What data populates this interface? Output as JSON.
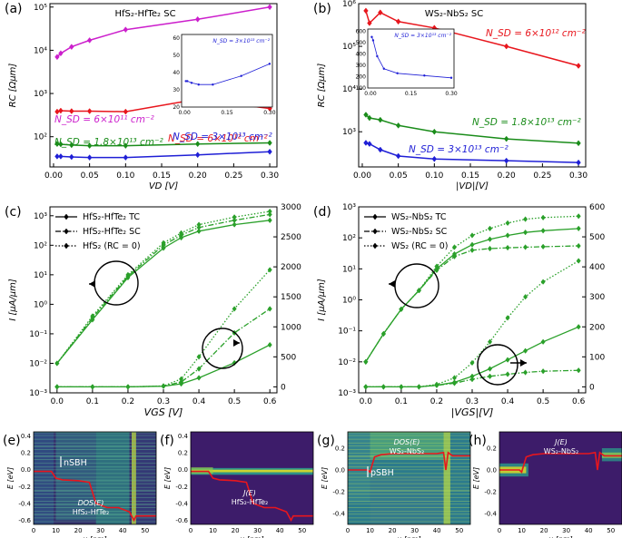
{
  "colors": {
    "red": "#e8161d",
    "green": "#1a8c1a",
    "blue": "#1f1fd6",
    "magenta": "#cc1fcc",
    "mid": "#2aa02a",
    "heat_bg": "#3b1f6b",
    "heat_hi": "#f2e41c",
    "heat_mid": "#33a58d"
  },
  "chart_data": [
    {
      "panel": "(a)",
      "type": "line",
      "title": "HfS₂-HfTe₂ SC",
      "xlabel": "V_D [V]",
      "ylabel": "R_C [Ωμm]",
      "yscale": "log",
      "xlim": [
        -0.005,
        0.31
      ],
      "ylim": [
        20,
        120000
      ],
      "xticks": [
        "0.00",
        "0.05",
        "0.10",
        "0.15",
        "0.20",
        "0.25",
        "0.30"
      ],
      "yticks": [
        "10²",
        "10³",
        "10⁴",
        "10⁵"
      ],
      "series": [
        {
          "name": "N_SD = 6×10¹¹ cm⁻²",
          "color": "magenta",
          "x": [
            0.005,
            0.01,
            0.025,
            0.05,
            0.1,
            0.2,
            0.3
          ],
          "y": [
            7000,
            8500,
            12000,
            17000,
            30000,
            52000,
            100000
          ]
        },
        {
          "name": "N_SD = 6×10¹² cm⁻²",
          "color": "red",
          "x": [
            0.005,
            0.01,
            0.025,
            0.05,
            0.1,
            0.2,
            0.3
          ],
          "y": [
            380,
            400,
            390,
            390,
            380,
            740,
            450
          ]
        },
        {
          "name": "N_SD = 1.8×10¹³ cm⁻²",
          "color": "green",
          "x": [
            0.005,
            0.01,
            0.025,
            0.05,
            0.1,
            0.2,
            0.3
          ],
          "y": [
            68,
            67,
            64,
            62,
            62,
            68,
            72
          ]
        },
        {
          "name": "N_SD = 3×10¹³ cm⁻²",
          "color": "blue",
          "x": [
            0.005,
            0.01,
            0.025,
            0.05,
            0.1,
            0.2,
            0.3
          ],
          "y": [
            35,
            35,
            34,
            33,
            33,
            38,
            45
          ]
        }
      ],
      "inset": {
        "label": "N_SD = 3×10¹³ cm⁻²",
        "x": [
          0.005,
          0.01,
          0.025,
          0.05,
          0.1,
          0.2,
          0.3
        ],
        "y": [
          35,
          35,
          34,
          33,
          33,
          38,
          45
        ],
        "xticks": [
          "0.00",
          "0.15",
          "0.30"
        ],
        "yticks": [
          "20",
          "30",
          "40",
          "50",
          "60"
        ],
        "ylim": [
          20,
          62
        ]
      }
    },
    {
      "panel": "(b)",
      "type": "line",
      "title": "WS₂-NbS₂ SC",
      "xlabel": "|V_D|[V]",
      "ylabel": "R_C [Ωμm]",
      "yscale": "log",
      "xlim": [
        -0.005,
        0.31
      ],
      "ylim": [
        150,
        1000000
      ],
      "xticks": [
        "0.00",
        "0.05",
        "0.10",
        "0.15",
        "0.20",
        "0.25",
        "0.30"
      ],
      "yticks": [
        "10³",
        "10⁴",
        "10⁵",
        "10⁶"
      ],
      "series": [
        {
          "name": "N_SD = 6×10¹² cm⁻²",
          "color": "red",
          "x": [
            0.005,
            0.01,
            0.025,
            0.05,
            0.1,
            0.2,
            0.3
          ],
          "y": [
            680000,
            350000,
            620000,
            380000,
            270000,
            100000,
            35000
          ]
        },
        {
          "name": "N_SD = 1.8×10¹³ cm⁻²",
          "color": "green",
          "x": [
            0.005,
            0.01,
            0.025,
            0.05,
            0.1,
            0.2,
            0.3
          ],
          "y": [
            2500,
            2100,
            1900,
            1400,
            1000,
            680,
            540
          ]
        },
        {
          "name": "N_SD = 3×10¹³ cm⁻²",
          "color": "blue",
          "x": [
            0.005,
            0.01,
            0.025,
            0.05,
            0.1,
            0.2,
            0.3
          ],
          "y": [
            550,
            520,
            380,
            270,
            230,
            210,
            190
          ]
        }
      ],
      "inset": {
        "label": "N_SD = 3×10¹³ cm⁻²",
        "x": [
          0.005,
          0.01,
          0.025,
          0.05,
          0.1,
          0.2,
          0.3
        ],
        "y": [
          550,
          520,
          380,
          270,
          230,
          210,
          190
        ],
        "xticks": [
          "0.00",
          "0.15",
          "0.30"
        ],
        "yticks": [
          "100",
          "200",
          "300",
          "400",
          "500",
          "600"
        ],
        "ylim": [
          100,
          620
        ]
      }
    },
    {
      "panel": "(c)",
      "type": "line",
      "xlabel": "V_GS [V]",
      "ylabel": "I [μA/μm]",
      "yscale": "log",
      "xlim": [
        -0.02,
        0.62
      ],
      "ylim": [
        0.001,
        2000
      ],
      "y2lim": [
        -100,
        3000
      ],
      "xticks": [
        "0.0",
        "0.1",
        "0.2",
        "0.3",
        "0.4",
        "0.5",
        "0.6"
      ],
      "yticks": [
        "10⁻³",
        "10⁻²",
        "10⁻¹",
        "10⁰",
        "10¹",
        "10²",
        "10³"
      ],
      "y2ticks": [
        "0",
        "500",
        "1000",
        "1500",
        "2000",
        "2500",
        "3000"
      ],
      "legend": [
        "HfS₂-HfTe₂ TC",
        "HfS₂-HfTe₂ SC",
        "HfS₂ (R_C = 0)"
      ],
      "x": [
        0.0,
        0.1,
        0.2,
        0.3,
        0.35,
        0.4,
        0.5,
        0.6
      ],
      "series_log": [
        {
          "name": "TC",
          "style": "solid",
          "values": [
            0.01,
            0.3,
            8,
            80,
            180,
            300,
            500,
            700
          ]
        },
        {
          "name": "SC",
          "style": "dashdot",
          "values": [
            0.01,
            0.35,
            9,
            100,
            220,
            400,
            700,
            1100
          ]
        },
        {
          "name": "R_C = 0",
          "style": "dotted",
          "values": [
            0.01,
            0.4,
            10,
            120,
            260,
            500,
            900,
            1400
          ]
        }
      ],
      "series_linear": [
        {
          "name": "TC",
          "style": "solid",
          "values": [
            0,
            0,
            0,
            10,
            50,
            150,
            400,
            700
          ]
        },
        {
          "name": "SC",
          "style": "dashdot",
          "values": [
            0,
            0,
            0,
            12,
            80,
            300,
            900,
            1300
          ]
        },
        {
          "name": "R_C = 0",
          "style": "dotted",
          "values": [
            0,
            0,
            0,
            15,
            130,
            500,
            1300,
            1950
          ]
        }
      ]
    },
    {
      "panel": "(d)",
      "type": "line",
      "xlabel": "|V_GS|[V]",
      "ylabel": "I [μA/μm]",
      "yscale": "log",
      "xlim": [
        -0.02,
        0.62
      ],
      "ylim": [
        0.001,
        1000
      ],
      "y2lim": [
        -20,
        600
      ],
      "xticks": [
        "0.0",
        "0.1",
        "0.2",
        "0.3",
        "0.4",
        "0.5",
        "0.6"
      ],
      "yticks": [
        "10⁻³",
        "10⁻²",
        "10⁻¹",
        "10⁰",
        "10¹",
        "10²",
        "10³"
      ],
      "y2ticks": [
        "0",
        "100",
        "200",
        "300",
        "400",
        "500",
        "600"
      ],
      "legend": [
        "WS₂-NbS₂ TC",
        "WS₂-NbS₂ SC",
        "WS₂ (R_C = 0)"
      ],
      "x": [
        0.0,
        0.05,
        0.1,
        0.15,
        0.2,
        0.25,
        0.3,
        0.35,
        0.4,
        0.45,
        0.5,
        0.6
      ],
      "series_log": [
        {
          "name": "TC",
          "style": "solid",
          "values": [
            0.01,
            0.08,
            0.5,
            2,
            10,
            30,
            60,
            90,
            120,
            150,
            170,
            200
          ]
        },
        {
          "name": "SC",
          "style": "dashdot",
          "values": [
            0.01,
            0.08,
            0.5,
            2,
            9,
            25,
            40,
            45,
            48,
            50,
            52,
            55
          ]
        },
        {
          "name": "R_C = 0",
          "style": "dotted",
          "values": [
            0.01,
            0.08,
            0.5,
            2,
            12,
            50,
            120,
            200,
            300,
            400,
            450,
            500
          ]
        }
      ],
      "series_linear": [
        {
          "name": "TC",
          "style": "solid",
          "values": [
            0,
            0,
            0,
            0,
            5,
            15,
            35,
            60,
            90,
            120,
            150,
            200
          ]
        },
        {
          "name": "SC",
          "style": "dashdot",
          "values": [
            0,
            0,
            0,
            0,
            5,
            12,
            25,
            35,
            42,
            48,
            52,
            55
          ]
        },
        {
          "name": "R_C = 0",
          "style": "dotted",
          "values": [
            0,
            0,
            0,
            0,
            8,
            30,
            80,
            150,
            230,
            300,
            350,
            420
          ]
        }
      ]
    },
    {
      "panel": "(e)",
      "type": "heatmap",
      "xlabel": "x [nm]",
      "ylabel": "E [eV]",
      "label1": "DOS(E)",
      "label2": "HfS₂-HfTe₂",
      "annotation": "nSB_H",
      "xticks": [
        "0",
        "10",
        "20",
        "30",
        "40",
        "50"
      ],
      "yticks": [
        "0.4",
        "0.2",
        "0.0",
        "-0.2",
        "-0.4",
        "-0.6"
      ],
      "xlim": [
        0,
        55
      ],
      "ylim": [
        -0.65,
        0.45
      ],
      "band_x": [
        0,
        8,
        10,
        13,
        20,
        25,
        28,
        33,
        38,
        43,
        45,
        46,
        55
      ],
      "band_E": [
        -0.02,
        -0.02,
        -0.1,
        -0.12,
        -0.13,
        -0.15,
        -0.4,
        -0.45,
        -0.45,
        -0.5,
        -0.6,
        -0.55,
        -0.55
      ]
    },
    {
      "panel": "(f)",
      "type": "heatmap",
      "xlabel": "x [nm]",
      "ylabel": "E [eV]",
      "label1": "J(E)",
      "label2": "HfS₂-HfTe₂",
      "xticks": [
        "0",
        "10",
        "20",
        "30",
        "40",
        "50"
      ],
      "yticks": [
        "0.4",
        "0.2",
        "0.0",
        "-0.2",
        "-0.4",
        "-0.6"
      ],
      "xlim": [
        0,
        55
      ],
      "ylim": [
        -0.65,
        0.45
      ],
      "band_x": [
        0,
        8,
        10,
        13,
        20,
        25,
        28,
        33,
        38,
        43,
        45,
        46,
        55
      ],
      "band_E": [
        -0.02,
        -0.02,
        -0.1,
        -0.12,
        -0.13,
        -0.15,
        -0.4,
        -0.45,
        -0.45,
        -0.5,
        -0.6,
        -0.55,
        -0.55
      ]
    },
    {
      "panel": "(g)",
      "type": "heatmap",
      "xlabel": "x [nm]",
      "ylabel": "E [eV]",
      "label1": "DOS(E)",
      "label2": "WS₂-NbS₂",
      "annotation": "pSB_H",
      "xticks": [
        "0",
        "10",
        "20",
        "30",
        "40",
        "50"
      ],
      "yticks": [
        "0.2",
        "0.0",
        "-0.2",
        "-0.4"
      ],
      "xlim": [
        0,
        55
      ],
      "ylim": [
        -0.5,
        0.35
      ],
      "band_x": [
        0,
        9,
        10,
        12,
        15,
        20,
        30,
        40,
        43,
        44,
        45,
        47,
        55
      ],
      "band_E": [
        0.0,
        0.0,
        -0.02,
        0.12,
        0.14,
        0.15,
        0.15,
        0.15,
        0.16,
        0.0,
        0.16,
        0.13,
        0.13
      ]
    },
    {
      "panel": "(h)",
      "type": "heatmap",
      "xlabel": "x [nm]",
      "ylabel": "E [eV]",
      "label1": "J(E)",
      "label2": "WS₂-NbS₂",
      "xticks": [
        "0",
        "10",
        "20",
        "30",
        "40",
        "50"
      ],
      "yticks": [
        "0.2",
        "0.0",
        "-0.2",
        "-0.4"
      ],
      "xlim": [
        0,
        55
      ],
      "ylim": [
        -0.5,
        0.35
      ],
      "band_x": [
        0,
        9,
        10,
        12,
        15,
        20,
        30,
        40,
        43,
        44,
        45,
        47,
        55
      ],
      "band_E": [
        0.0,
        0.0,
        -0.02,
        0.12,
        0.14,
        0.15,
        0.15,
        0.15,
        0.16,
        0.0,
        0.16,
        0.13,
        0.13
      ]
    }
  ]
}
